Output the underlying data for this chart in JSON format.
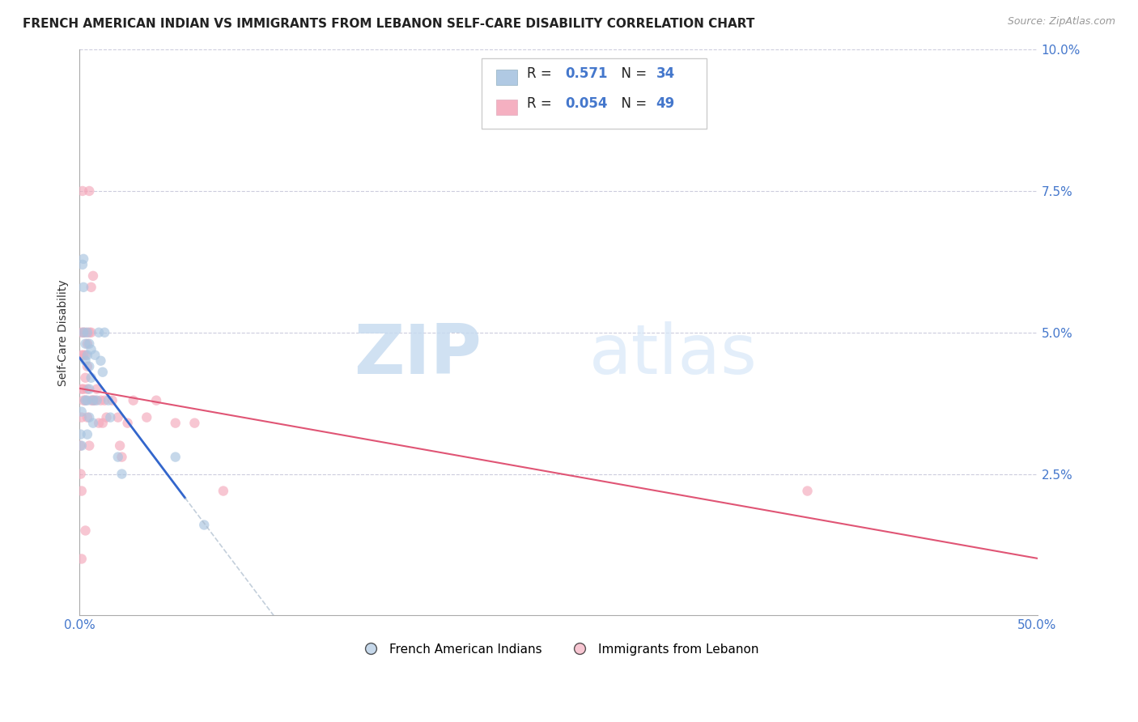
{
  "title": "FRENCH AMERICAN INDIAN VS IMMIGRANTS FROM LEBANON SELF-CARE DISABILITY CORRELATION CHART",
  "source": "Source: ZipAtlas.com",
  "ylabel": "Self-Care Disability",
  "xlim": [
    0.0,
    0.5
  ],
  "ylim": [
    0.0,
    0.1
  ],
  "xtick_pos": [
    0.0,
    0.5
  ],
  "xtick_labels": [
    "0.0%",
    "50.0%"
  ],
  "ytick_pos": [
    0.025,
    0.05,
    0.075,
    0.1
  ],
  "ytick_labels_left": [
    "2.5%",
    "5.0%",
    "7.5%",
    "10.0%"
  ],
  "ytick_labels_right": [
    "2.5%",
    "5.0%",
    "7.5%",
    "10.0%"
  ],
  "blue_R": "0.571",
  "blue_N": "34",
  "pink_R": "0.054",
  "pink_N": "49",
  "blue_color": "#A8C4E0",
  "pink_color": "#F4A8BB",
  "trendline_blue": "#3366CC",
  "trendline_pink": "#E05575",
  "legend_label_blue": "French American Indians",
  "legend_label_pink": "Immigrants from Lebanon",
  "blue_x": [
    0.0005,
    0.001,
    0.001,
    0.0015,
    0.002,
    0.002,
    0.002,
    0.003,
    0.003,
    0.003,
    0.004,
    0.004,
    0.004,
    0.004,
    0.005,
    0.005,
    0.005,
    0.005,
    0.006,
    0.006,
    0.007,
    0.007,
    0.008,
    0.009,
    0.01,
    0.011,
    0.012,
    0.013,
    0.015,
    0.016,
    0.02,
    0.022,
    0.05,
    0.065
  ],
  "blue_y": [
    0.032,
    0.036,
    0.03,
    0.062,
    0.063,
    0.058,
    0.05,
    0.048,
    0.045,
    0.038,
    0.05,
    0.046,
    0.038,
    0.032,
    0.048,
    0.044,
    0.04,
    0.035,
    0.047,
    0.042,
    0.038,
    0.034,
    0.046,
    0.038,
    0.05,
    0.045,
    0.043,
    0.05,
    0.038,
    0.035,
    0.028,
    0.025,
    0.028,
    0.016
  ],
  "pink_x": [
    0.0003,
    0.0005,
    0.001,
    0.001,
    0.001,
    0.001,
    0.001,
    0.0015,
    0.002,
    0.002,
    0.002,
    0.002,
    0.003,
    0.003,
    0.003,
    0.003,
    0.003,
    0.004,
    0.004,
    0.004,
    0.004,
    0.005,
    0.005,
    0.005,
    0.006,
    0.006,
    0.006,
    0.007,
    0.007,
    0.008,
    0.009,
    0.01,
    0.011,
    0.012,
    0.013,
    0.014,
    0.017,
    0.02,
    0.021,
    0.022,
    0.025,
    0.028,
    0.035,
    0.04,
    0.05,
    0.06,
    0.075,
    0.38,
    0.001
  ],
  "pink_y": [
    0.03,
    0.025,
    0.05,
    0.046,
    0.04,
    0.035,
    0.022,
    0.075,
    0.05,
    0.046,
    0.04,
    0.038,
    0.05,
    0.046,
    0.042,
    0.038,
    0.015,
    0.048,
    0.044,
    0.04,
    0.035,
    0.075,
    0.05,
    0.03,
    0.058,
    0.05,
    0.038,
    0.06,
    0.038,
    0.038,
    0.04,
    0.034,
    0.038,
    0.034,
    0.038,
    0.035,
    0.038,
    0.035,
    0.03,
    0.028,
    0.034,
    0.038,
    0.035,
    0.038,
    0.034,
    0.034,
    0.022,
    0.022,
    0.01
  ],
  "watermark_zip": "ZIP",
  "watermark_atlas": "atlas",
  "background_color": "#FFFFFF",
  "grid_color": "#CCCCDD",
  "title_fontsize": 11,
  "tick_fontsize": 11,
  "tick_color": "#4477CC",
  "marker_size": 80,
  "marker_alpha": 0.65
}
